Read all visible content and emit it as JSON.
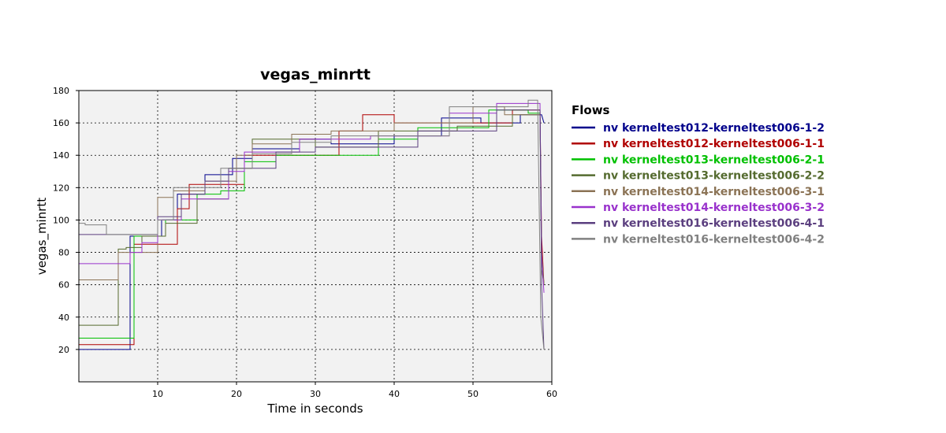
{
  "chart_data": {
    "type": "line",
    "title": "vegas_minrtt",
    "xlabel": "Time in seconds",
    "ylabel": "vegas_minrtt",
    "xlim": [
      0,
      60
    ],
    "ylim": [
      0,
      180
    ],
    "xticks": [
      10,
      20,
      30,
      40,
      50,
      60
    ],
    "yticks": [
      20,
      40,
      60,
      80,
      100,
      120,
      140,
      160,
      180
    ],
    "grid": true,
    "legend_title": "Flows",
    "legend_position": "right",
    "series": [
      {
        "name": "nv kerneltest012-kerneltest006-1-2",
        "color": "#00008b",
        "x": [
          0,
          6.5,
          6.5,
          7,
          7,
          10.5,
          10.5,
          12.5,
          12.5,
          16,
          16,
          19.5,
          19.5,
          22,
          22,
          28,
          28,
          32,
          32,
          40,
          40,
          46,
          46,
          51,
          51,
          56,
          56,
          58.5,
          58.7,
          59
        ],
        "y": [
          20,
          20,
          90,
          90,
          90,
          90,
          100,
          100,
          116,
          116,
          128,
          128,
          138,
          138,
          144,
          144,
          150,
          150,
          147,
          147,
          152,
          152,
          163,
          163,
          160,
          160,
          165,
          165,
          165,
          160
        ]
      },
      {
        "name": "nv kerneltest012-kerneltest006-1-1",
        "color": "#b00000",
        "x": [
          0,
          7,
          7,
          12.5,
          12.5,
          14,
          14,
          21,
          21,
          33,
          33,
          36,
          36,
          40,
          40,
          55,
          55,
          58.5,
          58.7,
          59
        ],
        "y": [
          23,
          23,
          85,
          85,
          107,
          107,
          122,
          122,
          140,
          140,
          155,
          155,
          165,
          165,
          160,
          160,
          168,
          168,
          90,
          60
        ]
      },
      {
        "name": "nv kerneltest013-kerneltest006-2-1",
        "color": "#00c000",
        "x": [
          0,
          7,
          7,
          11,
          11,
          15,
          15,
          18,
          18,
          21,
          21,
          25,
          25,
          38,
          38,
          43,
          43,
          52,
          52,
          57,
          57,
          58.5,
          58.7,
          59
        ],
        "y": [
          27,
          27,
          90,
          90,
          100,
          100,
          116,
          116,
          118,
          118,
          136,
          136,
          140,
          140,
          150,
          150,
          157,
          157,
          168,
          168,
          166,
          166,
          80,
          60
        ]
      },
      {
        "name": "nv kerneltest013-kerneltest006-2-2",
        "color": "#556b2f",
        "x": [
          0,
          5,
          5,
          6,
          6,
          8,
          8,
          11,
          11,
          15,
          15,
          19,
          19,
          22,
          22,
          30,
          30,
          38,
          38,
          48,
          48,
          55,
          55,
          58.5,
          58.7,
          59
        ],
        "y": [
          35,
          35,
          82,
          82,
          83,
          83,
          90,
          90,
          98,
          98,
          113,
          113,
          132,
          132,
          150,
          150,
          145,
          145,
          155,
          155,
          158,
          158,
          165,
          165,
          70,
          60
        ]
      },
      {
        "name": "nv kerneltest014-kerneltest006-3-1",
        "color": "#8b7355",
        "x": [
          0,
          5,
          5,
          7,
          7,
          10,
          10,
          12,
          12,
          16,
          16,
          20,
          20,
          22,
          22,
          27,
          27,
          32,
          32,
          40,
          40,
          50,
          50,
          54,
          54,
          58.5,
          58.7,
          59
        ],
        "y": [
          63,
          63,
          80,
          80,
          80,
          80,
          114,
          114,
          118,
          118,
          124,
          124,
          140,
          140,
          147,
          147,
          153,
          153,
          155,
          155,
          160,
          160,
          170,
          170,
          165,
          165,
          80,
          60
        ]
      },
      {
        "name": "nv kerneltest014-kerneltest006-3-2",
        "color": "#9932cc",
        "x": [
          0,
          6.5,
          6.5,
          8,
          8,
          10,
          10,
          13,
          13,
          19,
          19,
          21,
          21,
          28,
          28,
          37,
          37,
          47,
          47,
          53,
          53,
          58.5,
          58.7,
          59
        ],
        "y": [
          73,
          73,
          80,
          80,
          86,
          86,
          100,
          100,
          113,
          113,
          130,
          130,
          142,
          142,
          150,
          150,
          152,
          152,
          166,
          166,
          172,
          172,
          80,
          55
        ]
      },
      {
        "name": "nv kerneltest016-kerneltest006-4-1",
        "color": "#5b3f7f",
        "x": [
          0,
          3.5,
          3.5,
          6.5,
          6.5,
          10,
          10,
          13,
          13,
          16,
          16,
          19,
          19,
          25,
          25,
          30,
          30,
          43,
          43,
          53,
          53,
          58.5,
          58.7,
          59
        ],
        "y": [
          91,
          91,
          91,
          91,
          91,
          91,
          102,
          102,
          116,
          116,
          124,
          124,
          132,
          132,
          142,
          142,
          145,
          145,
          155,
          155,
          168,
          168,
          60,
          20
        ]
      },
      {
        "name": "nv kerneltest016-kerneltest006-4-2",
        "color": "#808080",
        "x": [
          0,
          0.8,
          0.8,
          3.5,
          3.5,
          10,
          10,
          12,
          12,
          18,
          18,
          22,
          22,
          27,
          27,
          32,
          32,
          47,
          47,
          57,
          57,
          58.2,
          58.6,
          59
        ],
        "y": [
          98,
          98,
          97,
          97,
          91,
          91,
          100,
          100,
          120,
          120,
          132,
          132,
          141,
          141,
          148,
          148,
          152,
          152,
          170,
          170,
          174,
          174,
          40,
          20
        ]
      }
    ]
  }
}
